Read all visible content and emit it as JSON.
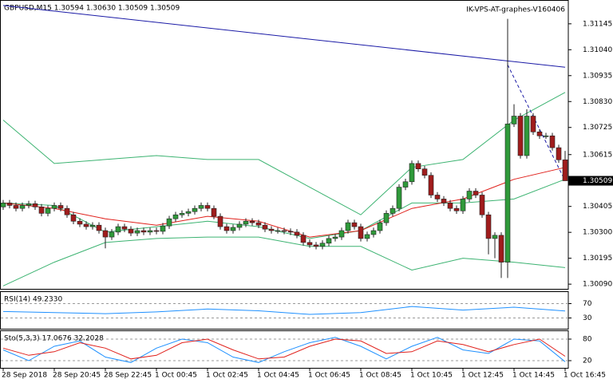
{
  "chart_data": [
    {
      "type": "candlestick",
      "title": "GBPUSD,M15  1.30594 1.30630 1.30509 1.30509",
      "label": "IK-VPS-AT-graphes-V160406",
      "categories": [
        "28 Sep 2018",
        null,
        null,
        null,
        null,
        null,
        null,
        null,
        "28 Sep 20:45",
        null,
        null,
        null,
        null,
        null,
        null,
        null,
        "28 Sep 22:45",
        null,
        null,
        null,
        null,
        null,
        null,
        null,
        "1 Oct 00:45",
        null,
        null,
        null,
        null,
        null,
        null,
        null,
        "1 Oct 02:45",
        null,
        null,
        null,
        null,
        null,
        null,
        null,
        "1 Oct 04:45",
        null,
        null,
        null,
        null,
        null,
        null,
        null,
        "1 Oct 06:45",
        null,
        null,
        null,
        null,
        null,
        null,
        null,
        "1 Oct 08:45",
        null,
        null,
        null,
        null,
        null,
        null,
        null,
        "1 Oct 10:45",
        null,
        null,
        null,
        null,
        null,
        null,
        null,
        "1 Oct 12:45",
        null,
        null,
        null,
        null,
        null,
        null,
        null,
        "1 Oct 14:45",
        null,
        null,
        null,
        null,
        null,
        null,
        null,
        "1 Oct 16:45"
      ],
      "open": [
        1.30403,
        1.30419,
        1.30409,
        1.30397,
        1.30409,
        1.30416,
        1.30403,
        1.30377,
        1.30397,
        1.30409,
        1.30397,
        1.30371,
        1.30345,
        1.30333,
        1.30323,
        1.30329,
        1.30307,
        1.30281,
        1.30301,
        1.30323,
        1.30313,
        1.30297,
        1.30307,
        1.30301,
        1.30307,
        1.30304,
        1.30326,
        1.30355,
        1.30371,
        1.30377,
        1.30384,
        1.30397,
        1.30409,
        1.30397,
        1.30365,
        1.30323,
        1.30307,
        1.3032,
        1.30333,
        1.30345,
        1.30339,
        1.30329,
        1.30313,
        1.30307,
        1.30307,
        1.30304,
        1.30301,
        1.30288,
        1.30259,
        1.30249,
        1.30243,
        1.30256,
        1.30275,
        1.30281,
        1.30307,
        1.30339,
        1.30323,
        1.30275,
        1.30291,
        1.30307,
        1.30339,
        1.30377,
        1.30397,
        1.30483,
        1.30505,
        1.30579,
        1.30557,
        1.30531,
        1.30451,
        1.30435,
        1.30419,
        1.30397,
        1.30387,
        1.30435,
        1.30467,
        1.30451,
        1.30371,
        1.30275,
        1.30288,
        1.30179,
        1.30739,
        1.30771,
        1.30611,
        1.30771,
        1.30707,
        1.30691,
        1.30691,
        1.30643,
        1.30594
      ],
      "high": [
        1.30431,
        1.30431,
        1.30421,
        1.30421,
        1.30428,
        1.30428,
        1.30415,
        1.30409,
        1.30421,
        1.30421,
        1.30409,
        1.30383,
        1.30357,
        1.30345,
        1.30341,
        1.30341,
        1.30319,
        1.30313,
        1.30335,
        1.30335,
        1.30325,
        1.30319,
        1.30319,
        1.30319,
        1.30319,
        1.30338,
        1.30367,
        1.30383,
        1.30389,
        1.30396,
        1.30409,
        1.30421,
        1.30421,
        1.30409,
        1.30377,
        1.30335,
        1.30332,
        1.30345,
        1.30357,
        1.30357,
        1.30351,
        1.30341,
        1.30325,
        1.30319,
        1.30319,
        1.30316,
        1.30313,
        1.303,
        1.30271,
        1.30261,
        1.30268,
        1.30287,
        1.30293,
        1.30319,
        1.30351,
        1.30351,
        1.30335,
        1.30303,
        1.30319,
        1.30351,
        1.30389,
        1.30409,
        1.30495,
        1.30517,
        1.30591,
        1.30591,
        1.30569,
        1.30543,
        1.30463,
        1.30447,
        1.30431,
        1.30409,
        1.30447,
        1.30479,
        1.30479,
        1.30463,
        1.30383,
        1.303,
        1.303,
        1.31165,
        1.30819,
        1.30783,
        1.30799,
        1.30783,
        1.30719,
        1.30703,
        1.30703,
        1.30655,
        1.3063
      ],
      "low": [
        1.30391,
        1.30397,
        1.30385,
        1.30385,
        1.30397,
        1.30391,
        1.30365,
        1.30365,
        1.30385,
        1.30385,
        1.30359,
        1.30333,
        1.30321,
        1.30311,
        1.30311,
        1.30295,
        1.30235,
        1.30269,
        1.30289,
        1.30301,
        1.30285,
        1.30285,
        1.30289,
        1.30289,
        1.30292,
        1.30292,
        1.30314,
        1.30343,
        1.30359,
        1.30365,
        1.30372,
        1.30385,
        1.30385,
        1.30353,
        1.30311,
        1.30295,
        1.30295,
        1.30308,
        1.30321,
        1.30327,
        1.30317,
        1.30301,
        1.30295,
        1.30295,
        1.30292,
        1.30289,
        1.30276,
        1.30247,
        1.30237,
        1.30231,
        1.30231,
        1.30244,
        1.30263,
        1.30269,
        1.30295,
        1.30311,
        1.30263,
        1.30263,
        1.30279,
        1.30295,
        1.30327,
        1.30365,
        1.30385,
        1.30471,
        1.30493,
        1.30545,
        1.30519,
        1.30439,
        1.30423,
        1.30407,
        1.30385,
        1.30375,
        1.30375,
        1.30423,
        1.30439,
        1.30359,
        1.30211,
        1.30195,
        1.30115,
        1.30115,
        1.30727,
        1.30599,
        1.30599,
        1.30695,
        1.30679,
        1.30679,
        1.30631,
        1.30582,
        1.30509
      ],
      "close": [
        1.30419,
        1.30409,
        1.30397,
        1.30409,
        1.30416,
        1.30403,
        1.30377,
        1.30397,
        1.30409,
        1.30397,
        1.30371,
        1.30345,
        1.30333,
        1.30323,
        1.30329,
        1.30307,
        1.30281,
        1.30301,
        1.30323,
        1.30313,
        1.30297,
        1.30307,
        1.30301,
        1.30307,
        1.30304,
        1.30326,
        1.30355,
        1.30371,
        1.30377,
        1.30384,
        1.30397,
        1.30409,
        1.30397,
        1.30365,
        1.30323,
        1.30307,
        1.3032,
        1.30333,
        1.30345,
        1.30339,
        1.30329,
        1.30313,
        1.30307,
        1.30307,
        1.30304,
        1.30301,
        1.30288,
        1.30259,
        1.30249,
        1.30243,
        1.30256,
        1.30275,
        1.30281,
        1.30307,
        1.30339,
        1.30323,
        1.30275,
        1.30291,
        1.30307,
        1.30339,
        1.30377,
        1.30397,
        1.30483,
        1.30505,
        1.30579,
        1.30557,
        1.30531,
        1.30451,
        1.30435,
        1.30419,
        1.30397,
        1.30387,
        1.30435,
        1.30467,
        1.30451,
        1.30371,
        1.30275,
        1.30288,
        1.30179,
        1.30739,
        1.30771,
        1.30611,
        1.30771,
        1.30707,
        1.30691,
        1.30691,
        1.30643,
        1.30594,
        1.30509
      ],
      "up_color": "#2f9a3a",
      "down_color": "#a01c1c",
      "series": [
        {
          "color": "#3cb371",
          "x": [
            0,
            8,
            16,
            24,
            32,
            40,
            48,
            56,
            64,
            72,
            80,
            88
          ],
          "values": [
            1.30755,
            1.30579,
            1.30595,
            1.30611,
            1.30595,
            1.30595,
            1.30483,
            1.30371,
            1.30563,
            1.30595,
            1.30755,
            1.30867
          ]
        },
        {
          "color": "#3cb371",
          "x": [
            0,
            8,
            16,
            24,
            32,
            40,
            48,
            56,
            64,
            72,
            80,
            88
          ],
          "values": [
            1.30419,
            1.30409,
            1.30301,
            1.30323,
            1.30345,
            1.30323,
            1.30275,
            1.30307,
            1.30419,
            1.30419,
            1.30435,
            1.30515
          ]
        },
        {
          "color": "#3cb371",
          "x": [
            0,
            8,
            16,
            24,
            32,
            40,
            48,
            56,
            64,
            72,
            80,
            88
          ],
          "values": [
            1.30083,
            1.30179,
            1.30259,
            1.30275,
            1.30281,
            1.30281,
            1.30243,
            1.30243,
            1.30147,
            1.30195,
            1.30179,
            1.30157
          ]
        },
        {
          "color": "#e0201b",
          "x": [
            0,
            8,
            16,
            24,
            32,
            40,
            48,
            56,
            64,
            72,
            80,
            88
          ],
          "values": [
            1.30419,
            1.30397,
            1.30355,
            1.30329,
            1.30365,
            1.30345,
            1.30281,
            1.30307,
            1.30397,
            1.30435,
            1.30515,
            1.30563
          ]
        },
        {
          "color": "#1a1aa6",
          "x": [
            0,
            88
          ],
          "values": [
            1.31219,
            1.30969
          ]
        },
        {
          "color": "#1a1aa6",
          "dash": true,
          "x": [
            79,
            88
          ],
          "values": [
            1.30979,
            1.30509
          ]
        }
      ],
      "ylim": [
        1.30071,
        1.31235
      ],
      "yticks": [
        1.31145,
        {
          "value": 1.3104,
          "label": "1.31040"
        },
        1.30935,
        {
          "value": 1.3083,
          "label": "1.30830"
        },
        1.30725,
        1.30615,
        1.30405,
        {
          "value": 1.303,
          "label": "1.30300"
        },
        1.30195,
        {
          "value": 1.3009,
          "label": "1.30090"
        }
      ]
    },
    {
      "type": "line",
      "title": "RSI(14) 49.2330",
      "x": [
        0,
        8,
        16,
        24,
        32,
        40,
        48,
        56,
        64,
        72,
        80,
        88
      ],
      "series": [
        {
          "color": "#1e90ff",
          "values": [
            48,
            45,
            42,
            47,
            55,
            50,
            40,
            45,
            62,
            52,
            60,
            49.233
          ]
        }
      ],
      "ylim": [
        0,
        100
      ],
      "yticks": [
        70,
        30
      ]
    },
    {
      "type": "line",
      "title": "Sto(5,3,3) 17.0676 32.2028",
      "x": [
        0,
        4,
        8,
        12,
        16,
        20,
        24,
        28,
        32,
        36,
        40,
        44,
        48,
        52,
        56,
        60,
        64,
        68,
        72,
        76,
        80,
        84,
        88
      ],
      "series": [
        {
          "color": "#1e90ff",
          "values": [
            50,
            20,
            60,
            75,
            30,
            15,
            55,
            80,
            70,
            30,
            15,
            45,
            70,
            85,
            60,
            25,
            60,
            85,
            50,
            40,
            80,
            75,
            17.0676
          ]
        },
        {
          "color": "#e0201b",
          "values": [
            55,
            35,
            45,
            70,
            55,
            25,
            35,
            70,
            80,
            50,
            25,
            30,
            60,
            80,
            75,
            40,
            45,
            75,
            65,
            45,
            65,
            80,
            32.2028
          ]
        }
      ],
      "ylim": [
        0,
        100
      ],
      "yticks": [
        80,
        20
      ]
    }
  ]
}
